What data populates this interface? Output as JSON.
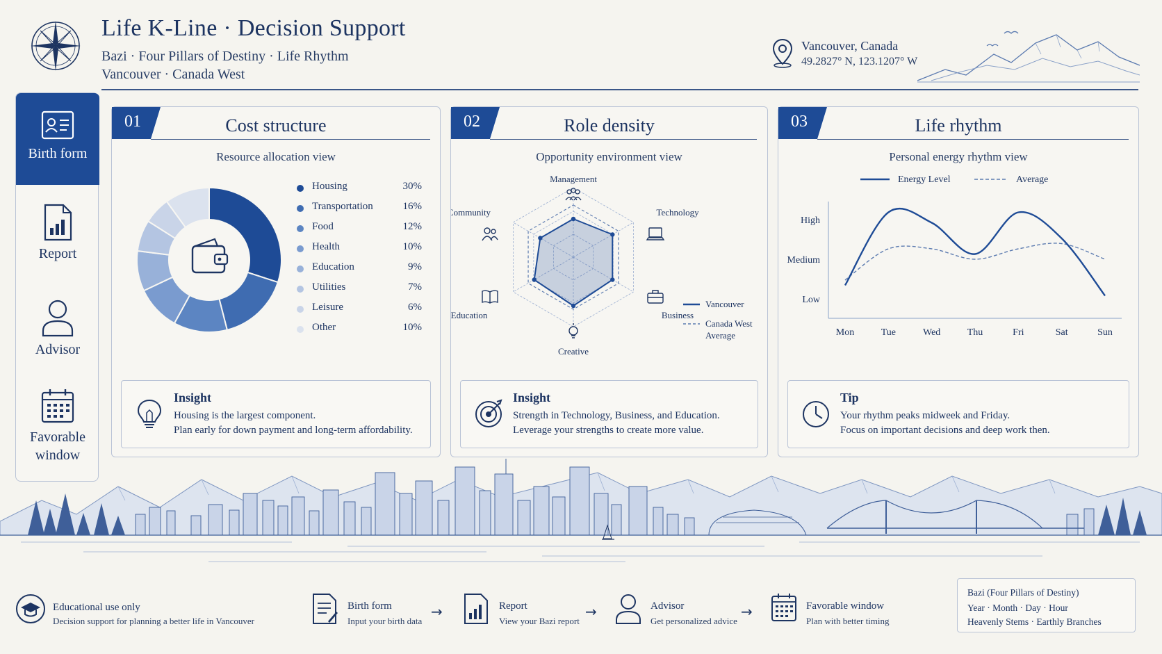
{
  "header": {
    "title": "Life K-Line · Decision Support",
    "subtitle_line1": "Bazi · Four Pillars of Destiny · Life Rhythm",
    "subtitle_line2": "Vancouver · Canada West",
    "location_city": "Vancouver, Canada",
    "location_coords": "49.2827° N, 123.1207° W",
    "icons": [
      "compass-icon",
      "location-pin-icon"
    ]
  },
  "sidebar": {
    "items": [
      {
        "label": "Birth form",
        "icon": "id-card-icon",
        "active": true
      },
      {
        "label": "Report",
        "icon": "report-chart-icon",
        "active": false
      },
      {
        "label": "Advisor",
        "icon": "person-icon",
        "active": false
      },
      {
        "label": "Favorable window",
        "icon": "calendar-icon",
        "active": false
      }
    ]
  },
  "panels": {
    "cost": {
      "number": "01",
      "title": "Cost structure",
      "subtitle": "Resource allocation view",
      "center_icon": "wallet-icon",
      "insight": {
        "title": "Insight",
        "line1": "Housing is the largest component.",
        "line2": "Plan early for down payment and long-term affordability.",
        "icon": "lightbulb-icon"
      }
    },
    "role": {
      "number": "02",
      "title": "Role density",
      "subtitle": "Opportunity environment view",
      "legend_vancouver": "Vancouver",
      "legend_average_line1": "Canada West",
      "legend_average_line2": "Average",
      "insight": {
        "title": "Insight",
        "line1": "Strength in Technology, Business, and Education.",
        "line2": "Leverage your strengths to create more value.",
        "icon": "target-icon"
      }
    },
    "rhythm": {
      "number": "03",
      "title": "Life rhythm",
      "subtitle": "Personal energy rhythm view",
      "legend_energy": "Energy Level",
      "legend_average": "Average",
      "tip": {
        "title": "Tip",
        "line1": "Your rhythm peaks midweek and Friday.",
        "line2": "Focus on important decisions and deep work then.",
        "icon": "clock-icon"
      }
    }
  },
  "chart_data": [
    {
      "type": "pie",
      "title": "Cost structure",
      "categories": [
        "Housing",
        "Transportation",
        "Food",
        "Health",
        "Education",
        "Utilities",
        "Leisure",
        "Other"
      ],
      "values": [
        30,
        16,
        12,
        10,
        9,
        7,
        6,
        10
      ],
      "value_labels": [
        "30%",
        "16%",
        "12%",
        "10%",
        "9%",
        "7%",
        "6%",
        "10%"
      ],
      "colors": [
        "#1e4b96",
        "#3f6cb1",
        "#5c85c2",
        "#7a9bcf",
        "#98b1d9",
        "#b4c5e2",
        "#c9d4e8",
        "#dbe2ee"
      ],
      "legend": "right"
    },
    {
      "type": "radar",
      "title": "Role density",
      "axes": [
        "Management",
        "Technology",
        "Business",
        "Creative",
        "Education",
        "Community"
      ],
      "axis_icons": [
        "people-icon",
        "laptop-icon",
        "briefcase-icon",
        "bulb-icon",
        "book-icon",
        "community-icon"
      ],
      "series": [
        {
          "name": "Vancouver",
          "values": [
            0.55,
            0.65,
            0.65,
            0.7,
            0.65,
            0.55
          ]
        },
        {
          "name": "Canada West Average",
          "values": [
            0.75,
            0.75,
            0.75,
            0.75,
            0.75,
            0.75
          ]
        }
      ],
      "legend": "bottom-right"
    },
    {
      "type": "line",
      "title": "Life rhythm",
      "categories": [
        "Mon",
        "Tue",
        "Wed",
        "Thu",
        "Fri",
        "Sat",
        "Sun"
      ],
      "y_tick_labels": [
        "Low",
        "Medium",
        "High"
      ],
      "ylim": [
        0,
        1
      ],
      "series": [
        {
          "name": "Energy Level",
          "values": [
            0.25,
            0.95,
            0.85,
            0.55,
            0.95,
            0.7,
            0.15
          ]
        },
        {
          "name": "Average",
          "values": [
            0.3,
            0.6,
            0.6,
            0.5,
            0.6,
            0.65,
            0.5
          ]
        }
      ],
      "legend": "top"
    }
  ],
  "footer": {
    "edu_title": "Educational use only",
    "edu_sub": "Decision support for planning a better life in Vancouver",
    "steps": [
      {
        "title": "Birth form",
        "sub": "Input your birth data",
        "icon": "form-icon"
      },
      {
        "title": "Report",
        "sub": "View your Bazi report",
        "icon": "report-icon"
      },
      {
        "title": "Advisor",
        "sub": "Get personalized advice",
        "icon": "advisor-icon"
      },
      {
        "title": "Favorable window",
        "sub": "Plan with better timing",
        "icon": "calendar-icon"
      }
    ],
    "bazi_line1": "Bazi (Four Pillars of Destiny)",
    "bazi_line2": "Year · Month · Day · Hour",
    "bazi_line3": "Heavenly Stems · Earthly Branches"
  }
}
